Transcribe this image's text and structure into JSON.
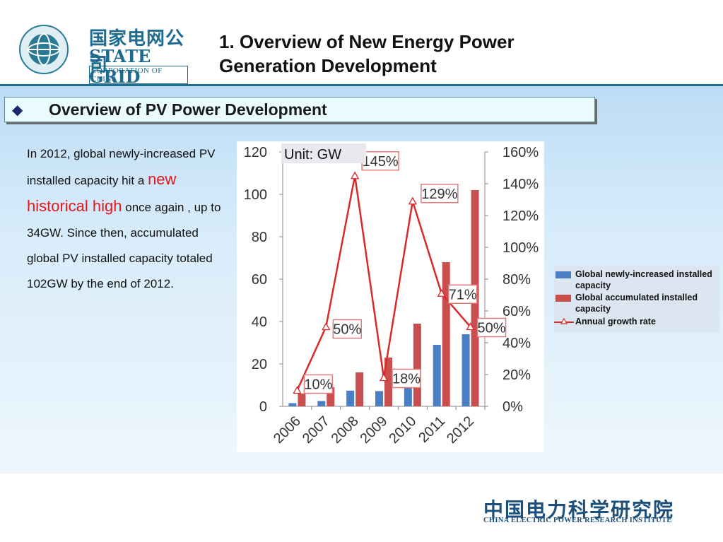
{
  "header": {
    "logo_cn": "国家电网公司",
    "logo_en": "STATE GRID",
    "logo_sub": "CORPORATION OF CHINA",
    "title_line1": "1. Overview of New Energy Power",
    "title_line2": "Generation Development"
  },
  "section": {
    "bullet": "◆",
    "title": "Overview of PV Power Development"
  },
  "body": {
    "p1": "In 2012, global newly-increased PV installed capacity hit a",
    "highlight": "new historical high",
    "p2": "once again , up to 34GW. Since then, accumulated global PV installed capacity totaled 102GW by the end of 2012."
  },
  "footer": {
    "cn": "中国电力科学研究院",
    "en": "CHINA ELECTRIC POWER RESEARCH INSTITUTE"
  },
  "colors": {
    "newly": "#4a7fc4",
    "accum": "#c94f4f",
    "growth": "#d92a2a",
    "header_blue": "#1e6b8f"
  },
  "legend": {
    "items": [
      {
        "label": "Global newly-increased installed capacity"
      },
      {
        "label": "Global accumulated installed capacity"
      },
      {
        "label": "Annual growth rate"
      }
    ]
  },
  "chart_data": {
    "type": "bar",
    "unit_label": "Unit: GW",
    "categories": [
      "2006",
      "2007",
      "2008",
      "2009",
      "2010",
      "2011",
      "2012"
    ],
    "series": [
      {
        "name": "Global newly-increased installed capacity",
        "type": "bar",
        "axis": "left",
        "values": [
          1.5,
          2.5,
          7.4,
          7.2,
          17,
          29,
          34
        ]
      },
      {
        "name": "Global accumulated installed capacity",
        "type": "bar",
        "axis": "left",
        "values": [
          6,
          9,
          16,
          23,
          39,
          68,
          102
        ]
      },
      {
        "name": "Annual growth rate",
        "type": "line",
        "axis": "right",
        "values": [
          10,
          50,
          145,
          18,
          129,
          71,
          50
        ],
        "labels": [
          "10%",
          "50%",
          "145%",
          "18%",
          "129%",
          "71%",
          "50%"
        ]
      }
    ],
    "ylim_left": [
      0,
      120
    ],
    "left_ticks": [
      "0",
      "20",
      "40",
      "60",
      "80",
      "100",
      "120"
    ],
    "ylim_right": [
      0,
      160
    ],
    "right_ticks": [
      "0%",
      "20%",
      "40%",
      "60%",
      "80%",
      "100%",
      "120%",
      "140%",
      "160%"
    ],
    "grid": false,
    "legend_position": "right"
  }
}
